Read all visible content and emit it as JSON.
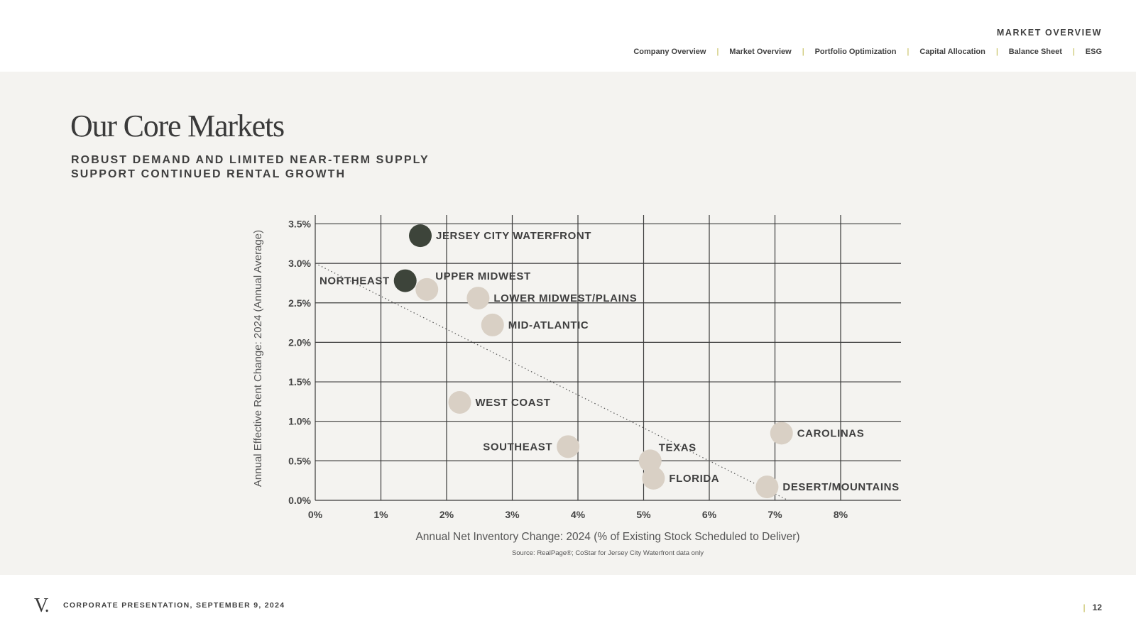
{
  "header": {
    "section_title": "MARKET OVERVIEW",
    "nav": [
      {
        "label": "Company Overview"
      },
      {
        "label": "Market Overview"
      },
      {
        "label": "Portfolio Optimization"
      },
      {
        "label": "Capital Allocation"
      },
      {
        "label": "Balance Sheet"
      },
      {
        "label": "ESG"
      }
    ],
    "nav_separator": "|"
  },
  "main": {
    "title": "Our Core Markets",
    "subtitle": "ROBUST DEMAND AND LIMITED NEAR-TERM SUPPLY SUPPORT CONTINUED RENTAL GROWTH",
    "source": "Source: RealPage®; CoStar for Jersey City Waterfront data only"
  },
  "footer": {
    "logo": "V.",
    "presentation": "CORPORATE PRESENTATION, SEPTEMBER 9, 2024",
    "separator": "|",
    "page_number": "12"
  },
  "colors": {
    "background_band": "#f4f3f0",
    "accent": "#b8b13a",
    "bubble_highlight": "#3d443a",
    "bubble_default": "#d9d0c5",
    "grid": "#3a3a3a",
    "text": "#3a3a3a"
  },
  "chart_data": {
    "type": "scatter",
    "xlabel": "Annual Net Inventory Change: 2024 (% of Existing Stock Scheduled to Deliver)",
    "ylabel": "Annual Effective Rent Change: 2024 (Annual Average)",
    "xlim": [
      0,
      8.9
    ],
    "ylim": [
      0,
      3.6
    ],
    "x_ticks": [
      0,
      1,
      2,
      3,
      4,
      5,
      6,
      7,
      8
    ],
    "x_tick_labels": [
      "0%",
      "1%",
      "2%",
      "3%",
      "4%",
      "5%",
      "6%",
      "7%",
      "8%"
    ],
    "y_ticks": [
      0,
      0.5,
      1,
      1.5,
      2,
      2.5,
      3,
      3.5
    ],
    "y_tick_labels": [
      "0.0%",
      "0.5%",
      "1.0%",
      "1.5%",
      "2.0%",
      "2.5%",
      "3.0%",
      "3.5%"
    ],
    "grid": true,
    "trendline": {
      "style": "dotted",
      "from": [
        0,
        3.0
      ],
      "to": [
        7.2,
        0
      ]
    },
    "points": [
      {
        "label": "JERSEY CITY WATERFRONT",
        "x": 1.6,
        "y": 3.35,
        "highlight": true,
        "label_side": "right"
      },
      {
        "label": "NORTHEAST",
        "x": 1.37,
        "y": 2.78,
        "highlight": true,
        "label_side": "left"
      },
      {
        "label": "UPPER MIDWEST",
        "x": 1.7,
        "y": 2.67,
        "highlight": false,
        "label_side": "upper-right"
      },
      {
        "label": "LOWER MIDWEST/PLAINS",
        "x": 2.48,
        "y": 2.56,
        "highlight": false,
        "label_side": "right"
      },
      {
        "label": "MID-ATLANTIC",
        "x": 2.7,
        "y": 2.22,
        "highlight": false,
        "label_side": "right"
      },
      {
        "label": "WEST COAST",
        "x": 2.2,
        "y": 1.24,
        "highlight": false,
        "label_side": "right"
      },
      {
        "label": "SOUTHEAST",
        "x": 3.85,
        "y": 0.68,
        "highlight": false,
        "label_side": "left"
      },
      {
        "label": "TEXAS",
        "x": 5.1,
        "y": 0.5,
        "highlight": false,
        "label_side": "upper-right"
      },
      {
        "label": "FLORIDA",
        "x": 5.15,
        "y": 0.28,
        "highlight": false,
        "label_side": "right"
      },
      {
        "label": "CAROLINAS",
        "x": 7.1,
        "y": 0.85,
        "highlight": false,
        "label_side": "right"
      },
      {
        "label": "DESERT/MOUNTAINS",
        "x": 6.88,
        "y": 0.17,
        "highlight": false,
        "label_side": "right"
      }
    ]
  }
}
